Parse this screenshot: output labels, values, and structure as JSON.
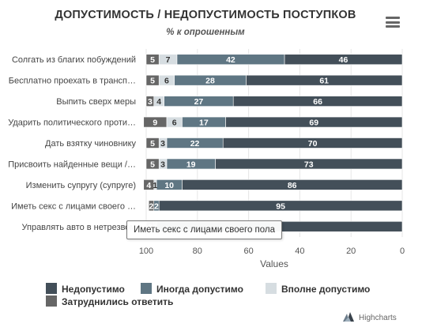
{
  "header": {
    "title": "ДОПУСТИМОСТЬ / НЕДОПУСТИМОСТЬ ПОСТУПКОВ",
    "subtitle": "% к опрошенным"
  },
  "tooltip": {
    "text": "Иметь секс с лицами своего пола"
  },
  "credits": {
    "label": "Highcharts"
  },
  "chart_data": {
    "type": "bar",
    "stacked": true,
    "orientation": "horizontal",
    "x_reversed": true,
    "title": "ДОПУСТИМОСТЬ / НЕДОПУСТИМОСТЬ ПОСТУПКОВ",
    "subtitle": "% к опрошенным",
    "xlabel": "Values",
    "xlim": [
      0,
      100
    ],
    "ticks": [
      100,
      80,
      60,
      40,
      20,
      0
    ],
    "grid": true,
    "legend_position": "bottom-left",
    "categories": [
      "Солгать из благих побуждений",
      "Бесплатно проехать в транспорте",
      "Выпить сверх меры",
      "Ударить политического противника",
      "Дать взятку чиновнику",
      "Присвоить найденные вещи / деньги",
      "Изменить супругу (супруге)",
      "Иметь секс с лицами своего пола",
      "Управлять авто в нетрезвом виде"
    ],
    "category_labels": [
      "Солгать из благих побуждений",
      "Бесплатно проехать в трансп…",
      "Выпить сверх меры",
      "Ударить политического проти…",
      "Дать взятку чиновнику",
      "Присвоить найденные вещи /…",
      "Изменить супругу (супруге)",
      "Иметь секс с лицами своего …",
      "Управлять авто в нетрезвом"
    ],
    "series": [
      {
        "name": "Недопустимо",
        "color": "#434f59",
        "values": [
          46,
          61,
          66,
          69,
          70,
          73,
          86,
          95,
          96
        ]
      },
      {
        "name": "Иногда допустимо",
        "color": "#5f7683",
        "values": [
          42,
          28,
          27,
          17,
          22,
          19,
          10,
          2,
          1
        ]
      },
      {
        "name": "Вполне допустимо",
        "color": "#d6dde1",
        "values": [
          7,
          6,
          4,
          6,
          3,
          3,
          1,
          0,
          0
        ]
      },
      {
        "name": "Затруднились ответить",
        "color": "#666666",
        "values": [
          5,
          5,
          3,
          9,
          5,
          5,
          4,
          2,
          3
        ]
      }
    ],
    "data_label_colors": [
      "#ffffff",
      "#ffffff",
      "#333333",
      "#ffffff"
    ],
    "hidden_labels": [
      [
        8,
        0
      ]
    ]
  }
}
